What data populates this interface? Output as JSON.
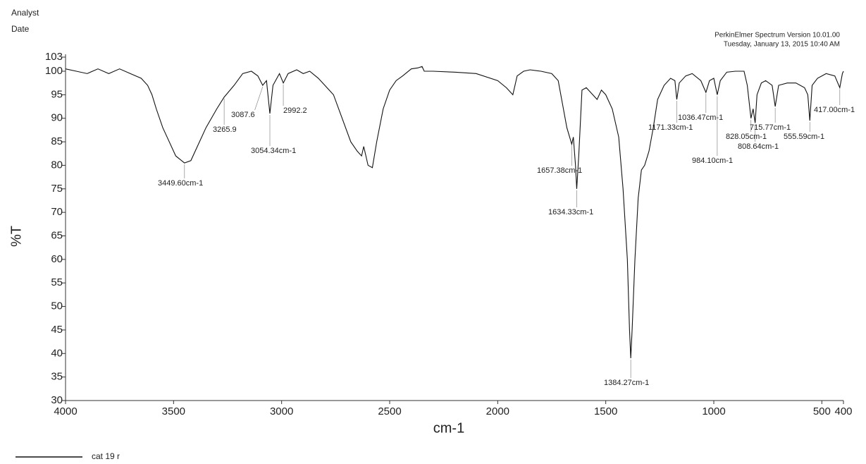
{
  "chart_data": {
    "type": "line",
    "analyst_label": "Analyst",
    "date_label": "Date",
    "software": "PerkinElmer Spectrum Version 10.01.00",
    "timestamp": "Tuesday, January 13, 2015 10:40 AM",
    "xlabel": "cm-1",
    "ylabel": "%T",
    "xlim": [
      4000,
      400
    ],
    "ylim": [
      30,
      103
    ],
    "xticks": [
      4000,
      3500,
      3000,
      2500,
      2000,
      1500,
      1000,
      500,
      400
    ],
    "yticks": [
      30,
      35,
      40,
      45,
      50,
      55,
      60,
      65,
      70,
      75,
      80,
      85,
      90,
      95,
      100,
      103
    ],
    "x": [
      4000,
      3950,
      3900,
      3850,
      3800,
      3750,
      3700,
      3650,
      3620,
      3600,
      3580,
      3550,
      3520,
      3490,
      3449.6,
      3420,
      3390,
      3350,
      3300,
      3265.9,
      3220,
      3180,
      3140,
      3110,
      3087.6,
      3070,
      3054.34,
      3040,
      3010,
      2992.2,
      2970,
      2930,
      2900,
      2870,
      2830,
      2800,
      2760,
      2720,
      2680,
      2650,
      2630,
      2620,
      2600,
      2580,
      2560,
      2530,
      2500,
      2470,
      2440,
      2400,
      2370,
      2350,
      2340,
      2300,
      2200,
      2100,
      2000,
      1960,
      1930,
      1910,
      1880,
      1850,
      1800,
      1750,
      1720,
      1700,
      1680,
      1657.38,
      1650,
      1640,
      1634.33,
      1625,
      1610,
      1590,
      1560,
      1540,
      1520,
      1500,
      1470,
      1440,
      1420,
      1400,
      1390,
      1384.27,
      1378,
      1365,
      1350,
      1335,
      1320,
      1300,
      1280,
      1260,
      1230,
      1200,
      1180,
      1171.33,
      1160,
      1130,
      1100,
      1060,
      1036.47,
      1020,
      1000,
      984.1,
      970,
      940,
      900,
      860,
      845,
      828.05,
      818,
      808.64,
      800,
      780,
      760,
      730,
      715.77,
      700,
      660,
      620,
      580,
      565,
      555.59,
      545,
      520,
      480,
      440,
      417,
      405,
      400
    ],
    "series": [
      {
        "name": "cat 19 r",
        "color": "#111111",
        "values": [
          100.5,
          100,
          99.5,
          100.5,
          99.5,
          100.5,
          99.5,
          98.5,
          97,
          95,
          92,
          88,
          85,
          82,
          80.5,
          81,
          84,
          88,
          92,
          94.5,
          97,
          99.5,
          100,
          99,
          97,
          98,
          91,
          97,
          99.5,
          97.5,
          99.5,
          100.3,
          99.5,
          100,
          98.5,
          97,
          95,
          90,
          85,
          83,
          82,
          84,
          80,
          79.5,
          85,
          92,
          96,
          98,
          99,
          100.5,
          100.7,
          101,
          100,
          100,
          99.8,
          99.5,
          98,
          96.5,
          95,
          99,
          100,
          100.3,
          100,
          99.5,
          98,
          93,
          88,
          84.5,
          86,
          80,
          75,
          82,
          96,
          96.5,
          95,
          94,
          96,
          95,
          92,
          86,
          75,
          60,
          45,
          39,
          45,
          60,
          73,
          79,
          80,
          83,
          88,
          94,
          97,
          98.5,
          98,
          94,
          97.5,
          99,
          99.5,
          98,
          95.5,
          98,
          98.5,
          95,
          98,
          99.8,
          100,
          100,
          97,
          90,
          92,
          89,
          95,
          97.5,
          98,
          97,
          92.5,
          97,
          97.5,
          97.5,
          96.5,
          95,
          89.5,
          97,
          98.5,
          99.5,
          99,
          96.5,
          99.5,
          100
        ]
      }
    ],
    "annotations": [
      {
        "label": "3449.60cm-1",
        "x": 3449.6,
        "y": 80.5
      },
      {
        "label": "3265.9",
        "x": 3265.9,
        "y": 94.5
      },
      {
        "label": "3087.6",
        "x": 3087.6,
        "y": 97
      },
      {
        "label": "3054.34cm-1",
        "x": 3054.34,
        "y": 91
      },
      {
        "label": "2992.2",
        "x": 2992.2,
        "y": 97.5
      },
      {
        "label": "1657.38cm-1",
        "x": 1657.38,
        "y": 84.5
      },
      {
        "label": "1634.33cm-1",
        "x": 1634.33,
        "y": 75
      },
      {
        "label": "1384.27cm-1",
        "x": 1384.27,
        "y": 39
      },
      {
        "label": "1171.33cm-1",
        "x": 1171.33,
        "y": 94
      },
      {
        "label": "1036.47cm-1",
        "x": 1036.47,
        "y": 95.5
      },
      {
        "label": "984.10cm-1",
        "x": 984.1,
        "y": 95
      },
      {
        "label": "828.05cm-1",
        "x": 828.05,
        "y": 90
      },
      {
        "label": "808.64cm-1",
        "x": 808.64,
        "y": 89
      },
      {
        "label": "715.77cm-1",
        "x": 715.77,
        "y": 92.5
      },
      {
        "label": "555.59cm-1",
        "x": 555.59,
        "y": 89.5
      },
      {
        "label": "417.00cm-1",
        "x": 417,
        "y": 96.5
      }
    ]
  }
}
